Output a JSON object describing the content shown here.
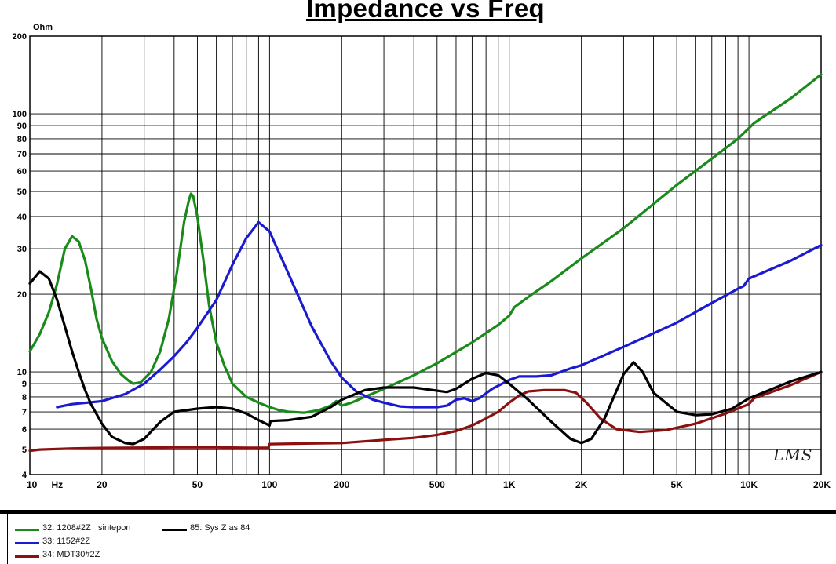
{
  "chart_data": {
    "type": "line",
    "title": "Impedance vs Freq",
    "ylabel": "Ohm",
    "xlabel": "Hz",
    "x_scale": "log",
    "y_scale": "log",
    "xlim": [
      10,
      20000
    ],
    "ylim": [
      4,
      200
    ],
    "grid": true,
    "legend_position": "bottom-left",
    "x_tick_labels": [
      {
        "value": 10,
        "label": "10"
      },
      {
        "value": 20,
        "label": "20"
      },
      {
        "value": 50,
        "label": "50"
      },
      {
        "value": 100,
        "label": "100"
      },
      {
        "value": 200,
        "label": "200"
      },
      {
        "value": 500,
        "label": "500"
      },
      {
        "value": 1000,
        "label": "1K"
      },
      {
        "value": 2000,
        "label": "2K"
      },
      {
        "value": 5000,
        "label": "5K"
      },
      {
        "value": 10000,
        "label": "10K"
      },
      {
        "value": 20000,
        "label": "20K"
      }
    ],
    "y_tick_labels": [
      {
        "value": 4,
        "label": "4"
      },
      {
        "value": 5,
        "label": "5"
      },
      {
        "value": 6,
        "label": "6"
      },
      {
        "value": 7,
        "label": "7"
      },
      {
        "value": 8,
        "label": "8"
      },
      {
        "value": 9,
        "label": "9"
      },
      {
        "value": 10,
        "label": "10"
      },
      {
        "value": 20,
        "label": "20"
      },
      {
        "value": 30,
        "label": "30"
      },
      {
        "value": 40,
        "label": "40"
      },
      {
        "value": 50,
        "label": "50"
      },
      {
        "value": 60,
        "label": "60"
      },
      {
        "value": 70,
        "label": "70"
      },
      {
        "value": 80,
        "label": "80"
      },
      {
        "value": 90,
        "label": "90"
      },
      {
        "value": 100,
        "label": "100"
      },
      {
        "value": 200,
        "label": "200"
      }
    ],
    "series": [
      {
        "name": "32: 1208#2Z   sintepon",
        "color": "#1a8a1a",
        "points": [
          [
            10,
            12
          ],
          [
            11,
            14
          ],
          [
            12,
            17
          ],
          [
            13,
            22
          ],
          [
            14,
            30
          ],
          [
            15,
            33.5
          ],
          [
            16,
            32
          ],
          [
            17,
            27
          ],
          [
            18,
            21
          ],
          [
            19,
            16
          ],
          [
            20,
            13.5
          ],
          [
            22,
            11
          ],
          [
            24,
            9.8
          ],
          [
            26,
            9.2
          ],
          [
            27,
            9.0
          ],
          [
            29,
            9.1
          ],
          [
            32,
            10
          ],
          [
            35,
            12
          ],
          [
            38,
            16
          ],
          [
            41,
            24
          ],
          [
            44,
            38
          ],
          [
            46,
            46
          ],
          [
            47,
            49
          ],
          [
            48,
            48
          ],
          [
            50,
            40
          ],
          [
            53,
            27
          ],
          [
            56,
            18
          ],
          [
            60,
            13
          ],
          [
            65,
            10.5
          ],
          [
            70,
            9
          ],
          [
            80,
            8
          ],
          [
            90,
            7.6
          ],
          [
            100,
            7.3
          ],
          [
            110,
            7.1
          ],
          [
            120,
            7.0
          ],
          [
            140,
            6.95
          ],
          [
            160,
            7.1
          ],
          [
            180,
            7.4
          ],
          [
            190,
            7.7
          ],
          [
            200,
            7.4
          ],
          [
            220,
            7.6
          ],
          [
            250,
            8
          ],
          [
            300,
            8.6
          ],
          [
            400,
            9.7
          ],
          [
            500,
            10.8
          ],
          [
            700,
            13
          ],
          [
            900,
            15.2
          ],
          [
            1000,
            16.5
          ],
          [
            1050,
            17.8
          ],
          [
            1200,
            19.5
          ],
          [
            1500,
            22.5
          ],
          [
            2000,
            27.5
          ],
          [
            3000,
            36
          ],
          [
            5000,
            53
          ],
          [
            7000,
            67
          ],
          [
            9000,
            80
          ],
          [
            10000,
            88
          ],
          [
            10500,
            92
          ],
          [
            15000,
            115
          ],
          [
            20000,
            142
          ]
        ]
      },
      {
        "name": "33: 1152#2Z",
        "color": "#1a1ad0",
        "points": [
          [
            13,
            7.3
          ],
          [
            15,
            7.5
          ],
          [
            20,
            7.7
          ],
          [
            25,
            8.2
          ],
          [
            30,
            9.0
          ],
          [
            35,
            10.2
          ],
          [
            40,
            11.5
          ],
          [
            45,
            13
          ],
          [
            50,
            14.8
          ],
          [
            60,
            19
          ],
          [
            70,
            26
          ],
          [
            80,
            33
          ],
          [
            90,
            38
          ],
          [
            100,
            35
          ],
          [
            120,
            24
          ],
          [
            150,
            15
          ],
          [
            180,
            11
          ],
          [
            200,
            9.5
          ],
          [
            230,
            8.4
          ],
          [
            270,
            7.8
          ],
          [
            300,
            7.6
          ],
          [
            350,
            7.35
          ],
          [
            400,
            7.3
          ],
          [
            500,
            7.3
          ],
          [
            550,
            7.4
          ],
          [
            600,
            7.8
          ],
          [
            650,
            7.9
          ],
          [
            700,
            7.7
          ],
          [
            750,
            7.9
          ],
          [
            850,
            8.6
          ],
          [
            1000,
            9.3
          ],
          [
            1100,
            9.6
          ],
          [
            1300,
            9.6
          ],
          [
            1500,
            9.7
          ],
          [
            1800,
            10.3
          ],
          [
            2000,
            10.6
          ],
          [
            3000,
            12.5
          ],
          [
            5000,
            15.5
          ],
          [
            7000,
            18.5
          ],
          [
            9000,
            21
          ],
          [
            9500,
            21.5
          ],
          [
            10000,
            23
          ],
          [
            15000,
            27
          ],
          [
            20000,
            31
          ]
        ]
      },
      {
        "name": "34: MDT30#2Z",
        "color": "#8b1010",
        "points": [
          [
            10,
            4.95
          ],
          [
            11,
            5.0
          ],
          [
            15,
            5.05
          ],
          [
            20,
            5.07
          ],
          [
            40,
            5.1
          ],
          [
            60,
            5.1
          ],
          [
            80,
            5.08
          ],
          [
            99,
            5.08
          ],
          [
            100,
            5.25
          ],
          [
            150,
            5.28
          ],
          [
            200,
            5.3
          ],
          [
            300,
            5.45
          ],
          [
            400,
            5.55
          ],
          [
            500,
            5.7
          ],
          [
            600,
            5.9
          ],
          [
            700,
            6.2
          ],
          [
            800,
            6.6
          ],
          [
            900,
            7.0
          ],
          [
            1000,
            7.6
          ],
          [
            1100,
            8.1
          ],
          [
            1200,
            8.4
          ],
          [
            1400,
            8.5
          ],
          [
            1700,
            8.5
          ],
          [
            1900,
            8.3
          ],
          [
            2100,
            7.6
          ],
          [
            2400,
            6.6
          ],
          [
            2800,
            6.0
          ],
          [
            3500,
            5.85
          ],
          [
            4500,
            5.95
          ],
          [
            6000,
            6.3
          ],
          [
            8000,
            6.9
          ],
          [
            10000,
            7.5
          ],
          [
            10500,
            7.9
          ],
          [
            15000,
            8.9
          ],
          [
            20000,
            10
          ]
        ]
      },
      {
        "name": "85: Sys Z as 84",
        "color": "#000000",
        "points": [
          [
            10,
            22
          ],
          [
            11,
            24.5
          ],
          [
            12,
            23
          ],
          [
            13,
            19
          ],
          [
            14,
            15
          ],
          [
            15,
            12
          ],
          [
            16,
            10
          ],
          [
            17,
            8.5
          ],
          [
            18,
            7.5
          ],
          [
            20,
            6.3
          ],
          [
            22,
            5.6
          ],
          [
            25,
            5.3
          ],
          [
            27,
            5.25
          ],
          [
            30,
            5.5
          ],
          [
            35,
            6.4
          ],
          [
            40,
            7.0
          ],
          [
            50,
            7.2
          ],
          [
            60,
            7.3
          ],
          [
            70,
            7.2
          ],
          [
            80,
            6.9
          ],
          [
            90,
            6.5
          ],
          [
            100,
            6.2
          ],
          [
            101,
            6.45
          ],
          [
            120,
            6.5
          ],
          [
            150,
            6.7
          ],
          [
            180,
            7.3
          ],
          [
            200,
            7.8
          ],
          [
            250,
            8.5
          ],
          [
            300,
            8.7
          ],
          [
            400,
            8.7
          ],
          [
            500,
            8.45
          ],
          [
            550,
            8.35
          ],
          [
            600,
            8.6
          ],
          [
            700,
            9.4
          ],
          [
            800,
            9.9
          ],
          [
            900,
            9.7
          ],
          [
            1000,
            9.0
          ],
          [
            1200,
            7.8
          ],
          [
            1500,
            6.4
          ],
          [
            1800,
            5.5
          ],
          [
            2000,
            5.3
          ],
          [
            2200,
            5.5
          ],
          [
            2500,
            6.6
          ],
          [
            3000,
            9.8
          ],
          [
            3300,
            10.9
          ],
          [
            3600,
            10.0
          ],
          [
            4000,
            8.3
          ],
          [
            5000,
            7.0
          ],
          [
            6000,
            6.8
          ],
          [
            7000,
            6.85
          ],
          [
            8500,
            7.2
          ],
          [
            10000,
            7.9
          ],
          [
            15000,
            9.2
          ],
          [
            20000,
            10
          ]
        ]
      }
    ]
  },
  "legend": {
    "items": [
      {
        "label": "32: 1208#2Z   sintepon",
        "color": "#1a8a1a"
      },
      {
        "label": "33: 1152#2Z",
        "color": "#1a1ad0"
      },
      {
        "label": "34: MDT30#2Z",
        "color": "#8b1010"
      },
      {
        "label": "85: Sys Z as 84",
        "color": "#000000"
      }
    ]
  },
  "watermark": "LMS"
}
